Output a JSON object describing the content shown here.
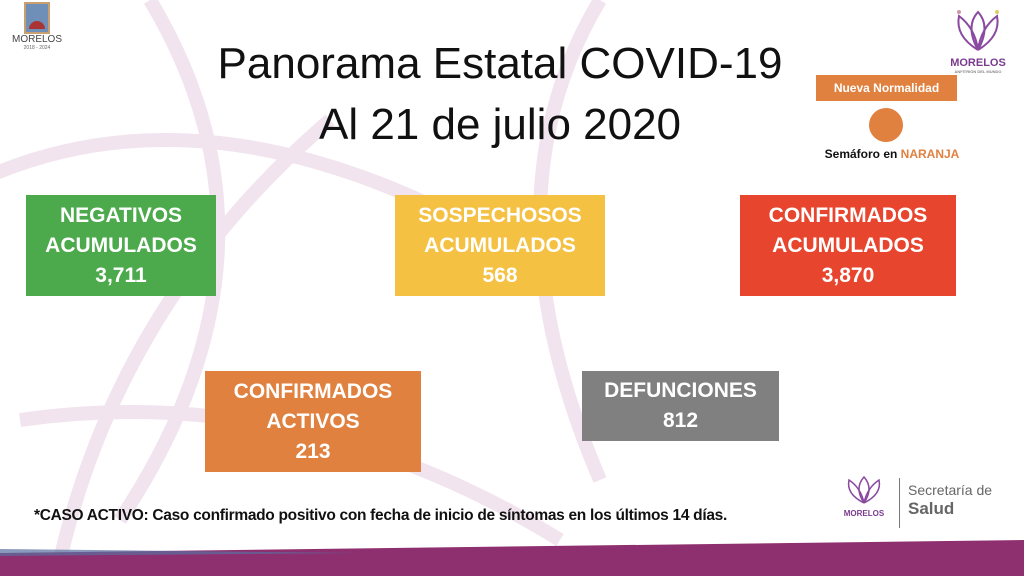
{
  "header": {
    "title_line1": "Panorama Estatal COVID-19",
    "title_line2": "Al 21 de julio 2020"
  },
  "logos": {
    "left": {
      "name": "MORELOS",
      "years": "2018 - 2024"
    },
    "right": {
      "name": "MORELOS",
      "subtitle": "ANFITRIÓN DEL MUNDO"
    },
    "footer": {
      "name": "MORELOS",
      "dept_line1": "Secretaría de",
      "dept_line2": "Salud"
    }
  },
  "semaforo": {
    "badge": "Nueva Normalidad",
    "label": "Semáforo en",
    "level": "NARANJA",
    "color": "#e0813f"
  },
  "cards": [
    {
      "line1": "NEGATIVOS",
      "line2": "ACUMULADOS",
      "value": "3,711",
      "color": "#4caa4c"
    },
    {
      "line1": "SOSPECHOSOS",
      "line2": "ACUMULADOS",
      "value": "568",
      "color": "#f4c142"
    },
    {
      "line1": "CONFIRMADOS",
      "line2": "ACUMULADOS",
      "value": "3,870",
      "color": "#e8452f"
    },
    {
      "line1": "CONFIRMADOS",
      "line2": "ACTIVOS",
      "value": "213",
      "color": "#e0813f"
    },
    {
      "line1": "DEFUNCIONES",
      "value": "812",
      "color": "#808080"
    }
  ],
  "footnote": "*CASO ACTIVO: Caso confirmado positivo con fecha de inicio de síntomas en los últimos 14 días."
}
